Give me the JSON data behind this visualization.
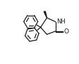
{
  "bg_color": "#ffffff",
  "line_color": "#1a1a1a",
  "line_width": 0.9,
  "figsize": [
    1.13,
    0.9
  ],
  "dpi": 100
}
